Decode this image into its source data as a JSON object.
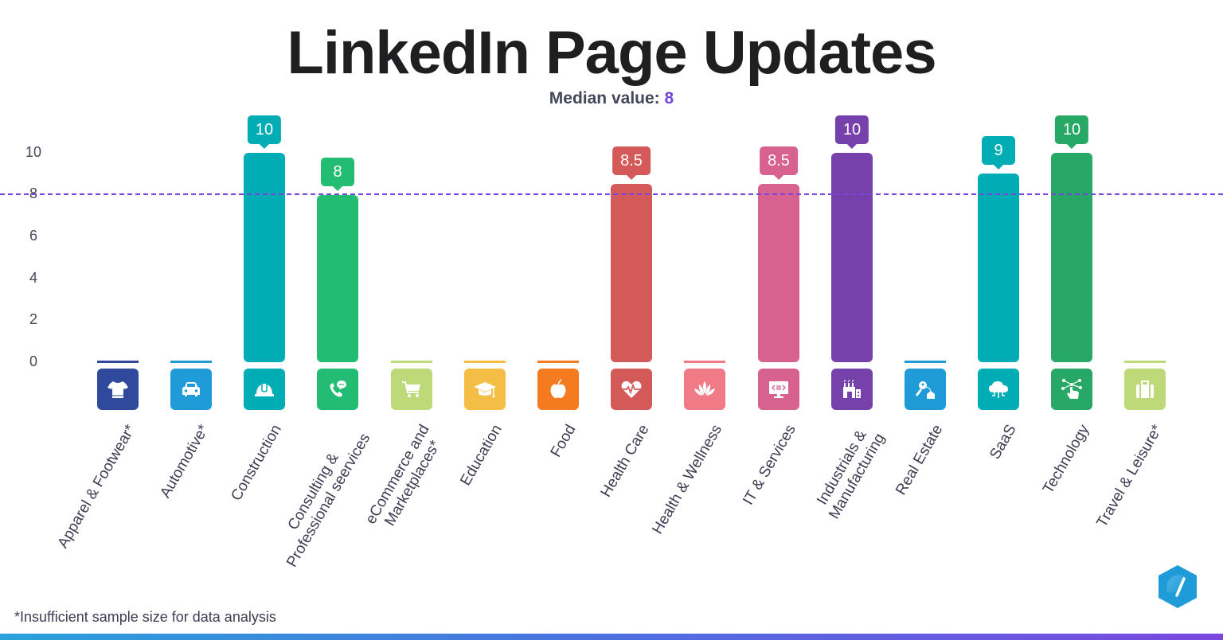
{
  "title": "LinkedIn Page Updates",
  "subtitle": {
    "label": "Median value:",
    "value": "8"
  },
  "footnote": "*Insufficient sample size for data analysis",
  "colors": {
    "median_line": "#7646df",
    "median_value": "#7045d8",
    "title": "#1f1f22"
  },
  "y_ticks": [
    "10",
    "8",
    "6",
    "4",
    "2",
    "0"
  ],
  "categories": [
    {
      "label": "Apparel & Footwear*",
      "value": null,
      "badge": "",
      "color": "#2f4a9c",
      "icon": "tshirt-icon"
    },
    {
      "label": "Automotive*",
      "value": null,
      "badge": "",
      "color": "#1f9bd8",
      "icon": "car-icon"
    },
    {
      "label": "Construction",
      "value": 10,
      "badge": "10",
      "color": "#00adb5",
      "icon": "hard-hat-icon"
    },
    {
      "label": "Consulting & Professional seervices",
      "value": 8,
      "badge": "8",
      "color": "#22bd72",
      "icon": "phone-chat-icon"
    },
    {
      "label": "eCommerce and Marketplaces*",
      "value": null,
      "badge": "",
      "color": "#bed978",
      "icon": "cart-icon"
    },
    {
      "label": "Education",
      "value": null,
      "badge": "",
      "color": "#f4bd45",
      "icon": "graduation-cap-icon"
    },
    {
      "label": "Food",
      "value": null,
      "badge": "",
      "color": "#f47b20",
      "icon": "apple-icon"
    },
    {
      "label": "Health Care",
      "value": 8.5,
      "badge": "8.5",
      "color": "#d45a5a",
      "icon": "heart-pulse-icon"
    },
    {
      "label": "Health & Wellness",
      "value": null,
      "badge": "",
      "color": "#f07b86",
      "icon": "lotus-icon"
    },
    {
      "label": "IT & Services",
      "value": 8.5,
      "badge": "8.5",
      "color": "#d7618f",
      "icon": "monitor-code-icon"
    },
    {
      "label": "Industrials & Manufacturing",
      "value": 10,
      "badge": "10",
      "color": "#7641ab",
      "icon": "factory-icon"
    },
    {
      "label": "Real Estate",
      "value": null,
      "badge": "",
      "color": "#1f9bd8",
      "icon": "house-key-icon"
    },
    {
      "label": "SaaS",
      "value": 9,
      "badge": "9",
      "color": "#00adb5",
      "icon": "cloud-icon"
    },
    {
      "label": "Technology",
      "value": 10,
      "badge": "10",
      "color": "#27a866",
      "icon": "network-touch-icon"
    },
    {
      "label": "Travel & Leisure*",
      "value": null,
      "badge": "",
      "color": "#bed978",
      "icon": "suitcase-icon"
    }
  ],
  "chart_data": {
    "type": "bar",
    "title": "LinkedIn Page Updates",
    "subtitle": "Median value: 8",
    "categories": [
      "Apparel & Footwear*",
      "Automotive*",
      "Construction",
      "Consulting & Professional seervices",
      "eCommerce and Marketplaces*",
      "Education",
      "Food",
      "Health Care",
      "Health & Wellness",
      "IT & Services",
      "Industrials & Manufacturing",
      "Real Estate",
      "SaaS",
      "Technology",
      "Travel & Leisure*"
    ],
    "values": [
      0,
      0,
      10,
      8,
      0,
      0,
      0,
      8.5,
      0,
      8.5,
      10,
      0,
      9,
      10,
      0
    ],
    "data_labels": [
      "",
      "",
      "10",
      "8",
      "",
      "",
      "",
      "8.5",
      "",
      "8.5",
      "10",
      "",
      "9",
      "10",
      ""
    ],
    "reference_line": {
      "label": "Median",
      "value": 8,
      "style": "dashed",
      "color": "#7646df"
    },
    "xlabel": "",
    "ylabel": "",
    "ylim": [
      0,
      10
    ],
    "yticks": [
      0,
      2,
      4,
      6,
      8,
      10
    ],
    "grid": false,
    "legend": "none",
    "annotations": [
      "*Insufficient sample size for data analysis"
    ]
  }
}
